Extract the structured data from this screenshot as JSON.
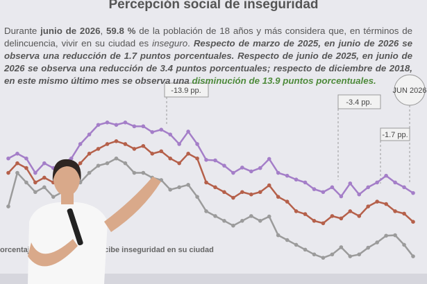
{
  "chart_data": {
    "type": "line",
    "title": "Percepción social de inseguridad",
    "paragraph": [
      "Durante ",
      "junio de 2026",
      ", ",
      "59.8 %",
      " de la población de 18 años y más considera que, en términos de delincuencia, vivir en su ciudad es ",
      "inseguro",
      ". ",
      "Respecto de marzo de 2025, en junio de 2026 se observa una reducción de 1.7 puntos porcentuales. Respecto de junio de 2025, en junio de 2026 se observa una reducción de 3.4 puntos porcentuales; respecto de diciembre de 2018, en este mismo último mes se observa una",
      " disminución de 13.9 puntos porcentuales."
    ],
    "caption": [
      "orcentaje",
      "percibe inseguridad en su ciudad"
    ],
    "annotations": [
      "-13.9 pp.",
      "-3.4 pp.",
      "-1.7 pp.",
      "JUN 2026"
    ],
    "ylim": [
      49,
      88.7
    ],
    "series": [
      {
        "color": "#a47ec8",
        "values": [
          73,
          74,
          73,
          70,
          72,
          71,
          72,
          73,
          76,
          78,
          80,
          80.5,
          80,
          80.5,
          79.7,
          79.7,
          78.5,
          79,
          78,
          76,
          78.6,
          76,
          72.7,
          72.6,
          71.5,
          70,
          71.1,
          70.3,
          71,
          72.9,
          70,
          69.4,
          68.6,
          68,
          66.6,
          66,
          67,
          65.1,
          67.8,
          65.5,
          67,
          68,
          69.4,
          68,
          67,
          65.8
        ]
      },
      {
        "color": "#b5604a",
        "values": [
          70,
          72,
          71,
          68,
          69,
          68,
          69,
          70,
          72,
          74,
          75,
          76,
          76.6,
          76,
          75,
          75.6,
          74,
          74.5,
          73,
          72,
          74,
          73,
          68,
          67,
          66,
          64.8,
          66,
          65.5,
          66,
          67.4,
          65,
          64,
          62,
          61.4,
          60,
          59.5,
          61,
          60.5,
          62,
          61,
          63,
          64,
          63.5,
          62,
          61.5,
          59.8
        ]
      },
      {
        "color": "#9b9b9b",
        "values": [
          63,
          70,
          68,
          66,
          67,
          65,
          66,
          66.5,
          68,
          70,
          71.5,
          72,
          73,
          72,
          70,
          70,
          69,
          68.5,
          66.5,
          67,
          67.5,
          65,
          62,
          61,
          60,
          59,
          60,
          61,
          60,
          60.9,
          57,
          56,
          55,
          54,
          53,
          52.3,
          53,
          54.5,
          52.6,
          53,
          54.4,
          55.5,
          56.9,
          57,
          55,
          52.6
        ]
      }
    ]
  }
}
